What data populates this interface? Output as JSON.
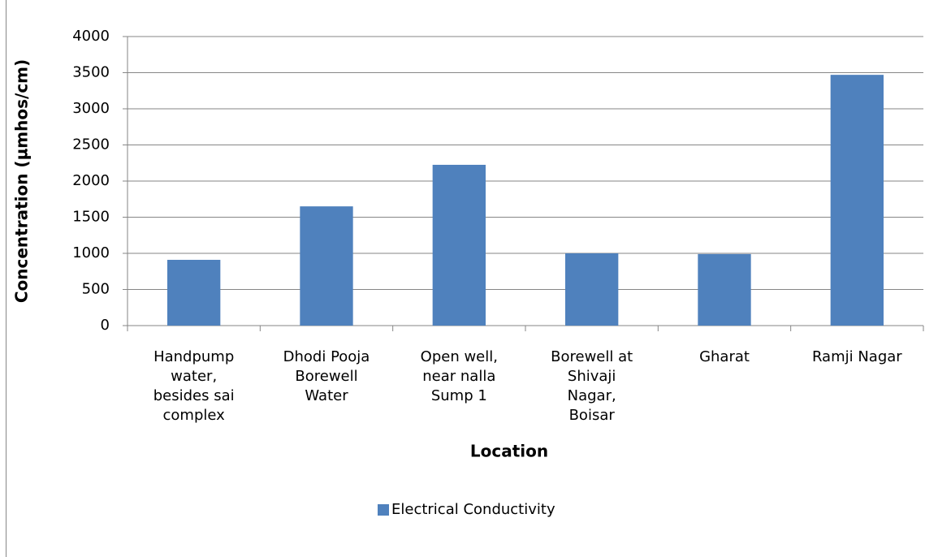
{
  "chart_data": {
    "type": "bar",
    "x_label": "Location",
    "y_label": "Concentration (µmhos/cm)",
    "categories": [
      "Handpump water, besides sai complex",
      "Dhodi Pooja Borewell Water",
      "Open well, near nalla Sump 1",
      "Borewell at Shivaji Nagar, Boisar",
      "Gharat",
      "Ramji Nagar"
    ],
    "series": [
      {
        "name": "Electrical Conductivity",
        "color": "#4f81bd",
        "values": [
          910,
          1650,
          2225,
          1000,
          990,
          3470
        ]
      }
    ],
    "ylim": [
      0,
      4000
    ],
    "yticks": [
      0,
      500,
      1000,
      1500,
      2000,
      2500,
      3000,
      3500,
      4000
    ],
    "grid": true,
    "legend": "bottom"
  }
}
